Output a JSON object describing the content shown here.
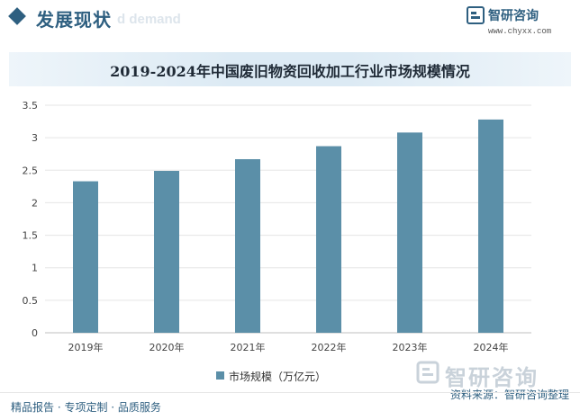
{
  "header": {
    "title": "发展现状",
    "ghost_text": "d demand"
  },
  "brand": {
    "name": "智研咨询",
    "url": "www.chyxx.com"
  },
  "footer": {
    "left": "精品报告 · 专项定制 · 品质服务",
    "source": "资料来源：智研咨询整理",
    "brand_name": "智研咨询"
  },
  "colors": {
    "accent": "#2e5f80",
    "bar": "#5b8fa8",
    "grid": "#e5e5e5"
  },
  "chart_data": {
    "type": "bar",
    "title": "2019-2024年中国废旧物资回收加工行业市场规模情况",
    "categories": [
      "2019年",
      "2020年",
      "2021年",
      "2022年",
      "2023年",
      "2024年"
    ],
    "series": [
      {
        "name": "市场规模（万亿元）",
        "values": [
          2.33,
          2.49,
          2.67,
          2.87,
          3.08,
          3.28
        ]
      }
    ],
    "ylim": [
      0,
      3.5
    ],
    "yticks": [
      0,
      0.5,
      1,
      1.5,
      2,
      2.5,
      3,
      3.5
    ],
    "ytick_labels": [
      "0",
      "0.5",
      "1",
      "1.5",
      "2",
      "2.5",
      "3",
      "3.5"
    ],
    "grid": true,
    "legend_position": "bottom"
  }
}
